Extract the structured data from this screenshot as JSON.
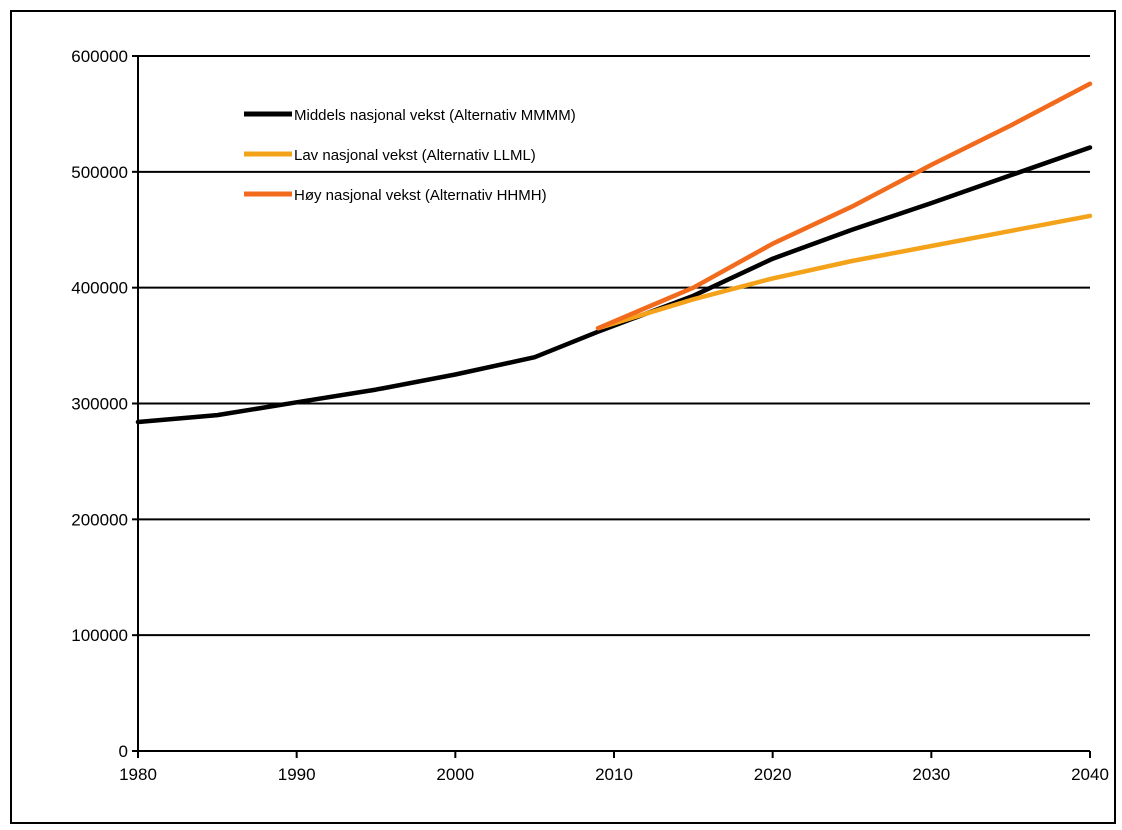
{
  "chart_data": {
    "type": "line",
    "title": "",
    "xlabel": "",
    "ylabel": "",
    "xlim": [
      1980,
      2040
    ],
    "ylim": [
      0,
      600000
    ],
    "x_ticks": [
      1980,
      1990,
      2000,
      2010,
      2020,
      2030,
      2040
    ],
    "y_ticks": [
      0,
      100000,
      200000,
      300000,
      400000,
      500000,
      600000
    ],
    "x_tick_labels": [
      "1980",
      "1990",
      "2000",
      "2010",
      "2020",
      "2030",
      "2040"
    ],
    "y_tick_labels": [
      "0",
      "100000",
      "200000",
      "300000",
      "400000",
      "500000",
      "600000"
    ],
    "grid": "horizontal",
    "legend_position": "top-left",
    "series": [
      {
        "name": "Middels nasjonal vekst (Alternativ MMMM)",
        "color": "#000000",
        "points": [
          [
            1980,
            284000
          ],
          [
            1985,
            290000
          ],
          [
            1990,
            301000
          ],
          [
            1995,
            312000
          ],
          [
            2000,
            325000
          ],
          [
            2005,
            340000
          ],
          [
            2009,
            362000
          ],
          [
            2015,
            393000
          ],
          [
            2020,
            425000
          ],
          [
            2025,
            450000
          ],
          [
            2030,
            473000
          ],
          [
            2035,
            497000
          ],
          [
            2040,
            521000
          ]
        ]
      },
      {
        "name": "Lav nasjonal vekst (Alternativ LLML)",
        "color": "#F5A21B",
        "points": [
          [
            2009,
            365000
          ],
          [
            2015,
            390000
          ],
          [
            2020,
            408000
          ],
          [
            2025,
            423000
          ],
          [
            2030,
            436000
          ],
          [
            2035,
            449000
          ],
          [
            2040,
            462000
          ]
        ]
      },
      {
        "name": "Høy nasjonal vekst (Alternativ HHMH)",
        "color": "#F26B1D",
        "points": [
          [
            2009,
            365000
          ],
          [
            2015,
            400000
          ],
          [
            2020,
            438000
          ],
          [
            2025,
            470000
          ],
          [
            2030,
            506000
          ],
          [
            2035,
            540000
          ],
          [
            2040,
            576000
          ]
        ]
      }
    ]
  }
}
